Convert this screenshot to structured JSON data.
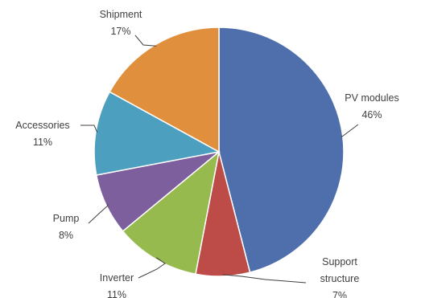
{
  "chart_data": {
    "type": "pie",
    "title": "",
    "slices": [
      {
        "label": "PV modules",
        "value": 46,
        "value_label": "46%",
        "color": "#4f6fac",
        "label_lines": [
          "PV modules"
        ]
      },
      {
        "label": "Support structure",
        "value": 7,
        "value_label": "7%",
        "color": "#bd4b48",
        "label_lines": [
          "Support",
          "structure"
        ]
      },
      {
        "label": "Inverter",
        "value": 11,
        "value_label": "11%",
        "color": "#97ba4f",
        "label_lines": [
          "Inverter"
        ]
      },
      {
        "label": "Pump",
        "value": 8,
        "value_label": "8%",
        "color": "#7e5f9e",
        "label_lines": [
          "Pump"
        ]
      },
      {
        "label": "Accessories",
        "value": 11,
        "value_label": "11%",
        "color": "#4d9fbf",
        "label_lines": [
          "Accessories"
        ]
      },
      {
        "label": "Shipment",
        "value": 17,
        "value_label": "17%",
        "color": "#e08f3c",
        "label_lines": [
          "Shipment"
        ]
      }
    ],
    "start_angle_deg": 0,
    "direction": "clockwise",
    "legend": "none",
    "data_labels": "outside with leader lines"
  }
}
